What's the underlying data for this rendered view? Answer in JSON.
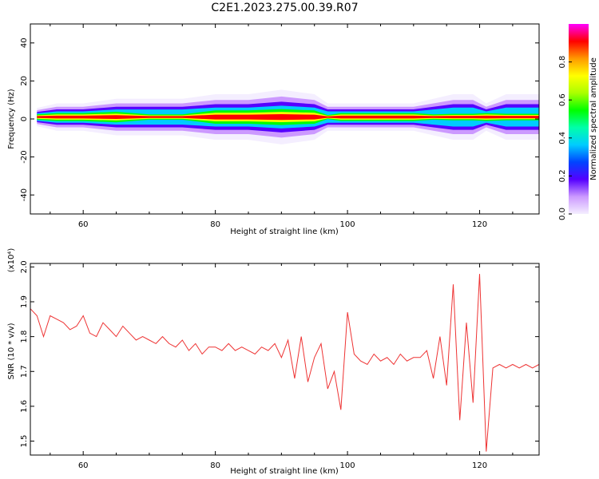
{
  "title": "C2E1.2023.275.00.39.R07",
  "colors": {
    "snr_line": "#ee3333",
    "axes": "#000000"
  },
  "chart_data": [
    {
      "type": "heatmap",
      "xlabel": "Height of straight line (km)",
      "ylabel": "Frequency (Hz)",
      "xlim": [
        52,
        129
      ],
      "ylim": [
        -50,
        50
      ],
      "xticks": [
        60,
        80,
        100,
        120
      ],
      "yticks": [
        40,
        20,
        0,
        -20,
        -40
      ],
      "colorbar": {
        "label": "Normalized spectral amplitude",
        "range": [
          0,
          1
        ],
        "ticks": [
          0.0,
          0.2,
          0.4,
          0.6,
          0.8
        ],
        "colormap": [
          "#f4eeff",
          "#cc99ff",
          "#5500ff",
          "#0044ff",
          "#00ccff",
          "#00ffaa",
          "#00ff00",
          "#aaff00",
          "#ffff00",
          "#ff9900",
          "#ff0000",
          "#ff00ff"
        ]
      },
      "band_center_hz": 1,
      "band_profile": [
        {
          "x": 53,
          "halfwidth": 2,
          "peak": 0.95
        },
        {
          "x": 56,
          "halfwidth": 3,
          "peak": 0.95
        },
        {
          "x": 60,
          "halfwidth": 3,
          "peak": 0.95
        },
        {
          "x": 65,
          "halfwidth": 4,
          "peak": 0.9
        },
        {
          "x": 70,
          "halfwidth": 4,
          "peak": 0.8
        },
        {
          "x": 75,
          "halfwidth": 4,
          "peak": 0.8
        },
        {
          "x": 80,
          "halfwidth": 5,
          "peak": 0.92
        },
        {
          "x": 85,
          "halfwidth": 5,
          "peak": 0.95
        },
        {
          "x": 90,
          "halfwidth": 6,
          "peak": 0.95
        },
        {
          "x": 95,
          "halfwidth": 5,
          "peak": 0.9
        },
        {
          "x": 97,
          "halfwidth": 3,
          "peak": 0.6
        },
        {
          "x": 99,
          "halfwidth": 3,
          "peak": 0.95
        },
        {
          "x": 102,
          "halfwidth": 3,
          "peak": 0.9
        },
        {
          "x": 106,
          "halfwidth": 3,
          "peak": 0.95
        },
        {
          "x": 110,
          "halfwidth": 3,
          "peak": 0.95
        },
        {
          "x": 113,
          "halfwidth": 4,
          "peak": 0.6
        },
        {
          "x": 116,
          "halfwidth": 5,
          "peak": 0.5
        },
        {
          "x": 119,
          "halfwidth": 5,
          "peak": 0.6
        },
        {
          "x": 121,
          "halfwidth": 3,
          "peak": 0.95
        },
        {
          "x": 124,
          "halfwidth": 5,
          "peak": 0.6
        },
        {
          "x": 129,
          "halfwidth": 5,
          "peak": 0.6
        }
      ]
    },
    {
      "type": "line",
      "xlabel": "Height of straight line (km)",
      "ylabel": "SNR (10 * v/v)",
      "scale_label": "(x10⁴)",
      "xlim": [
        52,
        129
      ],
      "ylim": [
        1.46,
        2.01
      ],
      "xticks": [
        60,
        80,
        100,
        120
      ],
      "yticks": [
        1.5,
        1.6,
        1.7,
        1.8,
        1.9,
        2.0
      ],
      "series": [
        {
          "x": [
            52,
            53,
            54,
            55,
            56,
            57,
            58,
            59,
            60,
            61,
            62,
            63,
            64,
            65,
            66,
            67,
            68,
            69,
            70,
            71,
            72,
            73,
            74,
            75,
            76,
            77,
            78,
            79,
            80,
            81,
            82,
            83,
            84,
            85,
            86,
            87,
            88,
            89,
            90,
            91,
            92,
            93,
            94,
            95,
            96,
            97,
            98,
            99,
            100,
            101,
            102,
            103,
            104,
            105,
            106,
            107,
            108,
            109,
            110,
            111,
            112,
            113,
            114,
            115,
            116,
            117,
            118,
            119,
            120,
            121,
            122,
            123,
            124,
            125,
            126,
            127,
            128,
            129
          ],
          "values": [
            1.88,
            1.86,
            1.8,
            1.86,
            1.85,
            1.84,
            1.82,
            1.83,
            1.86,
            1.81,
            1.8,
            1.84,
            1.82,
            1.8,
            1.83,
            1.81,
            1.79,
            1.8,
            1.79,
            1.78,
            1.8,
            1.78,
            1.77,
            1.79,
            1.76,
            1.78,
            1.75,
            1.77,
            1.77,
            1.76,
            1.78,
            1.76,
            1.77,
            1.76,
            1.75,
            1.77,
            1.76,
            1.78,
            1.74,
            1.79,
            1.68,
            1.8,
            1.67,
            1.74,
            1.78,
            1.65,
            1.7,
            1.59,
            1.87,
            1.75,
            1.73,
            1.72,
            1.75,
            1.73,
            1.74,
            1.72,
            1.75,
            1.73,
            1.74,
            1.74,
            1.76,
            1.68,
            1.8,
            1.66,
            1.95,
            1.56,
            1.84,
            1.61,
            1.98,
            1.47,
            1.71,
            1.72,
            1.71,
            1.72,
            1.71,
            1.72,
            1.71,
            1.72
          ]
        }
      ]
    }
  ]
}
